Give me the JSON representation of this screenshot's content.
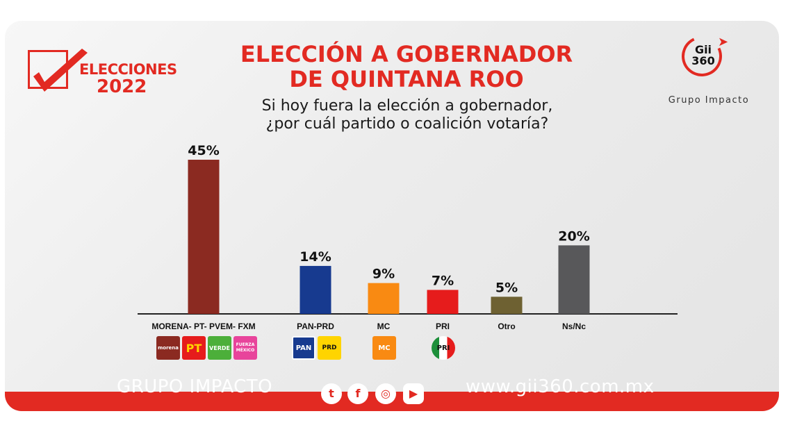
{
  "header": {
    "badge_line1": "ELECCIONES",
    "badge_line2": "2022",
    "title_line1": "ELECCIÓN A GOBERNADOR",
    "title_line2": "DE QUINTANA ROO",
    "subtitle_line1": "Si hoy fuera la elección a gobernador,",
    "subtitle_line2": "¿por cuál partido o coalición votaría?"
  },
  "brand_logo": {
    "line1": "Gii",
    "line2": "360",
    "caption": "Grupo Impacto"
  },
  "chart_data": {
    "type": "bar",
    "title": "ELECCIÓN A GOBERNADOR DE QUINTANA ROO",
    "categories": [
      "MORENA- PT- PVEM- FXM",
      "PAN-PRD",
      "MC",
      "PRI",
      "Otro",
      "Ns/Nc"
    ],
    "values": [
      45,
      14,
      9,
      7,
      5,
      20
    ],
    "value_labels": [
      "45%",
      "14%",
      "9%",
      "7%",
      "5%",
      "20%"
    ],
    "colors": [
      "#8b2a21",
      "#173a8f",
      "#f98a12",
      "#e61c1c",
      "#6e6132",
      "#58585a"
    ],
    "ylim": [
      0,
      45
    ],
    "grid": false,
    "legend": "none"
  },
  "party_logos": {
    "morena": "morena",
    "pt": "PT",
    "verde": "VERDE",
    "fxm": "FUERZA MÉXICO",
    "pan": "PAN",
    "prd": "PRD",
    "mc": "MC",
    "pri": "PRI"
  },
  "footer": {
    "brand": "GRUPO IMPACTO",
    "url": "www.gii360.com.mx",
    "social_icons": [
      "twitter-icon",
      "facebook-icon",
      "instagram-icon",
      "youtube-icon"
    ]
  },
  "colors": {
    "accent_red": "#e22a22"
  }
}
